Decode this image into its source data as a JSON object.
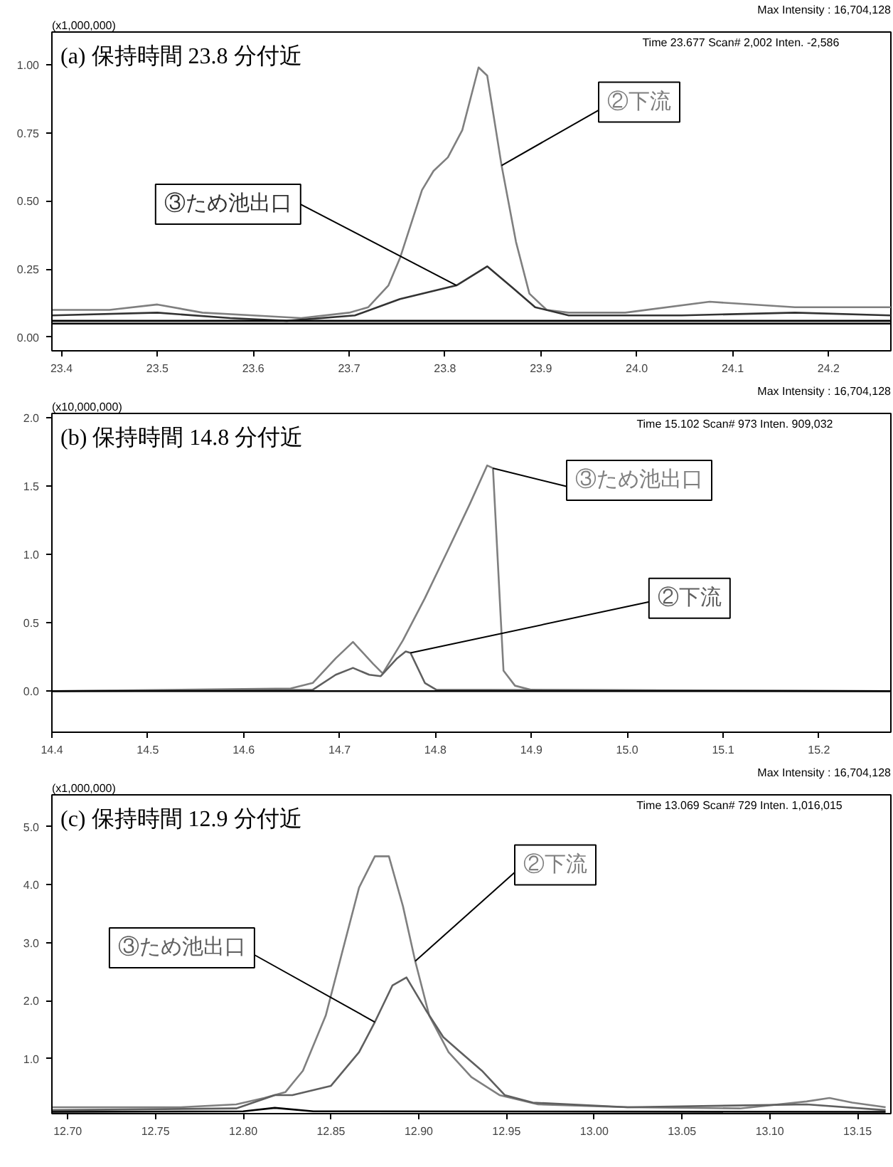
{
  "chart_data": [
    {
      "type": "line",
      "title": "(a)  保持時間 23.8 分付近",
      "annotations": [
        "(x1,000,000)",
        "Max Intensity : 16,704,128",
        "Time   23.677   Scan# 2,002   Inten.          -2,586"
      ],
      "xlim": [
        23.39,
        24.265
      ],
      "ylim": [
        -0.05,
        1.12
      ],
      "xticks": [
        23.4,
        23.5,
        23.6,
        23.7,
        23.8,
        23.9,
        {
          "value": 24.0,
          "label": "24.0"
        },
        24.1,
        24.2
      ],
      "yticks": [
        {
          "value": 0,
          "label": "0.00"
        },
        0.25,
        {
          "value": 0.5,
          "label": "0.50"
        },
        0.75,
        {
          "value": 1,
          "label": "1.00"
        }
      ],
      "grid": false,
      "legend": false,
      "series": [
        {
          "name": "②下流",
          "color": "#7f7f7f",
          "x": [
            23.39,
            23.45,
            23.5,
            23.547,
            23.6,
            23.65,
            23.7,
            23.72,
            23.741,
            23.753,
            23.776,
            23.788,
            23.803,
            23.818,
            23.835,
            23.844,
            23.859,
            23.874,
            23.888,
            23.906,
            23.929,
            23.988,
            24.076,
            24.165,
            24.265
          ],
          "values": [
            0.1,
            0.1,
            0.12,
            0.09,
            0.08,
            0.07,
            0.09,
            0.11,
            0.19,
            0.29,
            0.54,
            0.61,
            0.66,
            0.76,
            0.99,
            0.96,
            0.63,
            0.35,
            0.16,
            0.1,
            0.09,
            0.09,
            0.13,
            0.11,
            0.11
          ]
        },
        {
          "name": "③ため池出口",
          "color": "#333333",
          "x": [
            23.39,
            23.5,
            23.576,
            23.635,
            23.706,
            23.753,
            23.812,
            23.844,
            23.871,
            23.894,
            23.929,
            24.047,
            24.165,
            24.265
          ],
          "values": [
            0.08,
            0.09,
            0.07,
            0.06,
            0.08,
            0.14,
            0.19,
            0.26,
            0.18,
            0.11,
            0.08,
            0.08,
            0.09,
            0.08
          ]
        },
        {
          "color": "#000000",
          "x": [
            23.39,
            24.265
          ],
          "values": [
            0.06,
            0.06
          ]
        },
        {
          "color": "#000000",
          "x": [
            23.39,
            24.265
          ],
          "values": [
            0.05,
            0.05
          ]
        }
      ]
    },
    {
      "type": "line",
      "title": "(b)  保持時間 14.8 分付近",
      "annotations": [
        "(x10,000,000)",
        "Max Intensity : 16,704,128",
        "Time   15.102   Scan#   973   Inten.          909,032"
      ],
      "xlim": [
        14.4,
        15.275
      ],
      "ylim": [
        -0.3,
        2.03
      ],
      "xticks": [
        14.4,
        14.5,
        14.6,
        14.7,
        14.8,
        14.9,
        {
          "value": 15.0,
          "label": "15.0"
        },
        15.1,
        15.2
      ],
      "yticks": [
        {
          "value": 0,
          "label": "0.0"
        },
        0.5,
        {
          "value": 1,
          "label": "1.0"
        },
        1.5,
        {
          "value": 2,
          "label": "2.0"
        }
      ],
      "grid": false,
      "legend": false,
      "series": [
        {
          "name": "③ため池出口",
          "color": "#7f7f7f",
          "x": [
            14.4,
            14.649,
            14.672,
            14.696,
            14.714,
            14.735,
            14.745,
            14.766,
            14.789,
            14.813,
            14.836,
            14.854,
            14.86,
            14.868,
            14.871,
            14.883,
            14.9,
            15.275
          ],
          "values": [
            0,
            0.02,
            0.06,
            0.24,
            0.36,
            0.2,
            0.13,
            0.37,
            0.68,
            1.03,
            1.37,
            1.65,
            1.63,
            0.55,
            0.15,
            0.04,
            0.01,
            0
          ]
        },
        {
          "name": "②下流",
          "color": "#5f5f5f",
          "x": [
            14.4,
            14.672,
            14.696,
            14.714,
            14.731,
            14.743,
            14.76,
            14.769,
            14.774,
            14.789,
            14.801,
            15.275
          ],
          "values": [
            0,
            0.01,
            0.12,
            0.17,
            0.12,
            0.11,
            0.24,
            0.29,
            0.28,
            0.06,
            0.01,
            0
          ]
        },
        {
          "color": "#000000",
          "x": [
            14.4,
            15.275
          ],
          "values": [
            0,
            0
          ]
        }
      ]
    },
    {
      "type": "line",
      "title": "(c)  保持時間 12.9 分付近",
      "annotations": [
        "(x1,000,000)",
        "Max Intensity : 16,704,128",
        "Time   13.069   Scan#   729   Inten.       1,016,015"
      ],
      "xlim": [
        12.691,
        13.169
      ],
      "ylim": [
        0.05,
        5.55
      ],
      "xticks": [
        {
          "value": 12.7,
          "label": "12.70"
        },
        12.75,
        {
          "value": 12.8,
          "label": "12.80"
        },
        12.85,
        {
          "value": 12.9,
          "label": "12.90"
        },
        12.95,
        {
          "value": 13.0,
          "label": "13.00"
        },
        13.05,
        {
          "value": 13.1,
          "label": "13.10"
        },
        13.15
      ],
      "yticks": [
        {
          "value": 1,
          "label": "1.0"
        },
        {
          "value": 2,
          "label": "2.0"
        },
        {
          "value": 3,
          "label": "3.0"
        },
        {
          "value": 4,
          "label": "4.0"
        },
        {
          "value": 5,
          "label": "5.0"
        }
      ],
      "grid": false,
      "legend": false,
      "series": [
        {
          "name": "②下流",
          "color": "#7f7f7f",
          "x": [
            12.691,
            12.764,
            12.796,
            12.812,
            12.824,
            12.834,
            12.847,
            12.856,
            12.866,
            12.875,
            12.883,
            12.891,
            12.898,
            12.906,
            12.917,
            12.93,
            12.946,
            12.968,
            13.019,
            13.083,
            13.121,
            13.134,
            13.147,
            13.166
          ],
          "values": [
            0.16,
            0.16,
            0.21,
            0.32,
            0.42,
            0.79,
            1.74,
            2.79,
            3.95,
            4.49,
            4.49,
            3.63,
            2.68,
            1.74,
            1.11,
            0.68,
            0.37,
            0.21,
            0.16,
            0.14,
            0.26,
            0.32,
            0.24,
            0.16
          ]
        },
        {
          "name": "③ため池出口",
          "color": "#5f5f5f",
          "x": [
            12.691,
            12.796,
            12.818,
            12.828,
            12.85,
            12.866,
            12.875,
            12.885,
            12.893,
            12.904,
            12.914,
            12.923,
            12.936,
            12.949,
            12.965,
            13.019,
            13.121,
            13.166
          ],
          "values": [
            0.11,
            0.14,
            0.37,
            0.37,
            0.53,
            1.11,
            1.63,
            2.26,
            2.4,
            1.84,
            1.37,
            1.13,
            0.79,
            0.37,
            0.24,
            0.16,
            0.21,
            0.11
          ]
        },
        {
          "color": "#000000",
          "x": [
            12.691,
            12.8,
            12.818,
            12.84,
            13.166
          ],
          "values": [
            0.08,
            0.09,
            0.15,
            0.09,
            0.08
          ]
        }
      ]
    }
  ]
}
